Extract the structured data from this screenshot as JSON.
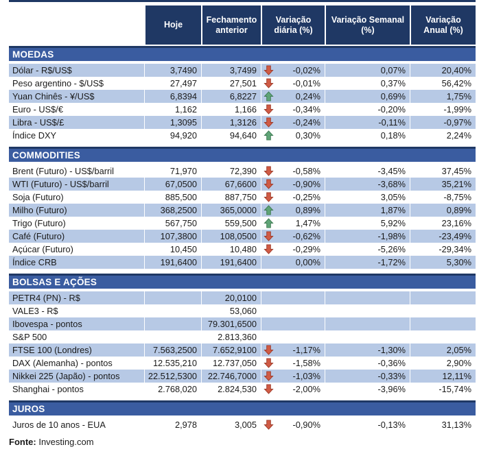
{
  "colors": {
    "header_bg": "#1F3864",
    "section_bg": "#3A5CA0",
    "band_row_bg": "#B7C9E5",
    "arrow_up": "#5FA477",
    "arrow_up_edge": "#3D7A52",
    "arrow_down": "#D05B45",
    "arrow_down_edge": "#9E3A28"
  },
  "columns": {
    "label": "",
    "hoje": "Hoje",
    "fechamento": "Fechamento anterior",
    "var_diaria": "Variação diária (%)",
    "var_semanal": "Variação Semanal (%)",
    "var_anual": "Variação Anual (%)"
  },
  "sections": [
    {
      "title": "MOEDAS",
      "rows": [
        {
          "label": "Dólar - R$/US$",
          "hoje": "3,7490",
          "fechamento": "3,7499",
          "arrow": "down",
          "var_diaria": "-0,02%",
          "var_semanal": "0,07%",
          "var_anual": "20,40%"
        },
        {
          "label": "Peso argentino - $/US$",
          "hoje": "27,497",
          "fechamento": "27,501",
          "arrow": "down",
          "var_diaria": "-0,01%",
          "var_semanal": "0,37%",
          "var_anual": "56,42%"
        },
        {
          "label": "Yuan Chinês - ¥/US$",
          "hoje": "6,8394",
          "fechamento": "6,8227",
          "arrow": "up",
          "var_diaria": "0,24%",
          "var_semanal": "0,69%",
          "var_anual": "1,75%"
        },
        {
          "label": "Euro - US$/€",
          "hoje": "1,162",
          "fechamento": "1,166",
          "arrow": "down",
          "var_diaria": "-0,34%",
          "var_semanal": "-0,20%",
          "var_anual": "-1,99%"
        },
        {
          "label": "Libra - US$/£",
          "hoje": "1,3095",
          "fechamento": "1,3126",
          "arrow": "down",
          "var_diaria": "-0,24%",
          "var_semanal": "-0,11%",
          "var_anual": "-0,97%"
        },
        {
          "label": "Índice DXY",
          "hoje": "94,920",
          "fechamento": "94,640",
          "arrow": "up",
          "var_diaria": "0,30%",
          "var_semanal": "0,18%",
          "var_anual": "2,24%"
        }
      ]
    },
    {
      "title": "COMMODITIES",
      "rows": [
        {
          "label": "Brent (Futuro) - US$/barril",
          "hoje": "71,970",
          "fechamento": "72,390",
          "arrow": "down",
          "var_diaria": "-0,58%",
          "var_semanal": "-3,45%",
          "var_anual": "37,45%"
        },
        {
          "label": "WTI (Futuro) - US$/barril",
          "hoje": "67,0500",
          "fechamento": "67,6600",
          "arrow": "down",
          "var_diaria": "-0,90%",
          "var_semanal": "-3,68%",
          "var_anual": "35,21%"
        },
        {
          "label": "Soja (Futuro)",
          "hoje": "885,500",
          "fechamento": "887,750",
          "arrow": "down",
          "var_diaria": "-0,25%",
          "var_semanal": "3,05%",
          "var_anual": "-8,75%"
        },
        {
          "label": "Milho (Futuro)",
          "hoje": "368,2500",
          "fechamento": "365,0000",
          "arrow": "up",
          "var_diaria": "0,89%",
          "var_semanal": "1,87%",
          "var_anual": "0,89%"
        },
        {
          "label": "Trigo (Futuro)",
          "hoje": "567,750",
          "fechamento": "559,500",
          "arrow": "up",
          "var_diaria": "1,47%",
          "var_semanal": "5,92%",
          "var_anual": "23,16%"
        },
        {
          "label": "Café (Futuro)",
          "hoje": "107,3800",
          "fechamento": "108,0500",
          "arrow": "down",
          "var_diaria": "-0,62%",
          "var_semanal": "-1,98%",
          "var_anual": "-23,49%"
        },
        {
          "label": "Açúcar (Futuro)",
          "hoje": "10,450",
          "fechamento": "10,480",
          "arrow": "down",
          "var_diaria": "-0,29%",
          "var_semanal": "-5,26%",
          "var_anual": "-29,34%"
        },
        {
          "label": "Índice CRB",
          "hoje": "191,6400",
          "fechamento": "191,6400",
          "arrow": "",
          "var_diaria": "0,00%",
          "var_semanal": "-1,72%",
          "var_anual": "5,30%"
        }
      ]
    },
    {
      "title": "BOLSAS E AÇÕES",
      "rows": [
        {
          "label": "PETR4 (PN) - R$",
          "hoje": "",
          "fechamento": "20,0100",
          "arrow": "",
          "var_diaria": "",
          "var_semanal": "",
          "var_anual": ""
        },
        {
          "label": "VALE3 - R$",
          "hoje": "",
          "fechamento": "53,060",
          "arrow": "",
          "var_diaria": "",
          "var_semanal": "",
          "var_anual": ""
        },
        {
          "label": "Ibovespa - pontos",
          "hoje": "",
          "fechamento": "79.301,6500",
          "arrow": "",
          "var_diaria": "",
          "var_semanal": "",
          "var_anual": ""
        },
        {
          "label": "S&P 500",
          "hoje": "",
          "fechamento": "2.813,360",
          "arrow": "",
          "var_diaria": "",
          "var_semanal": "",
          "var_anual": ""
        },
        {
          "label": "FTSE 100 (Londres)",
          "hoje": "7.563,2500",
          "fechamento": "7.652,9100",
          "arrow": "down",
          "var_diaria": "-1,17%",
          "var_semanal": "-1,30%",
          "var_anual": "2,05%"
        },
        {
          "label": "DAX (Alemanha) - pontos",
          "hoje": "12.535,210",
          "fechamento": "12.737,050",
          "arrow": "down",
          "var_diaria": "-1,58%",
          "var_semanal": "-0,36%",
          "var_anual": "2,90%"
        },
        {
          "label": "Nikkei 225 (Japão) - pontos",
          "hoje": "22.512,5300",
          "fechamento": "22.746,7000",
          "arrow": "down",
          "var_diaria": "-1,03%",
          "var_semanal": "-0,33%",
          "var_anual": "12,11%"
        },
        {
          "label": "Shanghai - pontos",
          "hoje": "2.768,020",
          "fechamento": "2.824,530",
          "arrow": "down",
          "var_diaria": "-2,00%",
          "var_semanal": "-3,96%",
          "var_anual": "-15,74%"
        }
      ]
    },
    {
      "title": "JUROS",
      "rows": [
        {
          "label": "Juros de 10 anos - EUA",
          "hoje": "2,978",
          "fechamento": "3,005",
          "arrow": "down",
          "var_diaria": "-0,90%",
          "var_semanal": "-0,13%",
          "var_anual": "31,13%"
        }
      ]
    }
  ],
  "footer": {
    "source_label": "Fonte:",
    "source_value": "Investing.com"
  }
}
